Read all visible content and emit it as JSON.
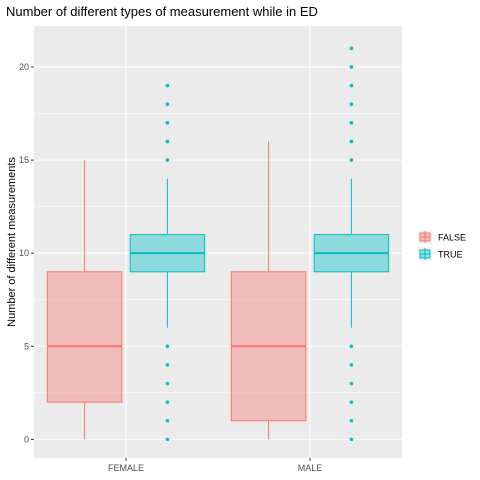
{
  "chart_data": {
    "type": "box",
    "title": "Number of different types of measurement while in ED",
    "xlabel": "",
    "ylabel": "Number of different measurements",
    "categories": [
      "FEMALE",
      "MALE"
    ],
    "ylim": [
      -1,
      22.2
    ],
    "yticks": [
      0,
      5,
      10,
      15,
      20
    ],
    "grid": true,
    "legend_position": "right",
    "series": [
      {
        "name": "FALSE",
        "color": "#F8766D",
        "boxes": [
          {
            "category": "FEMALE",
            "min": 0,
            "q1": 2,
            "median": 5,
            "q3": 9,
            "max": 15,
            "outliers": []
          },
          {
            "category": "MALE",
            "min": 0,
            "q1": 1,
            "median": 5,
            "q3": 9,
            "max": 16,
            "outliers": []
          }
        ]
      },
      {
        "name": "TRUE",
        "color": "#00BFC4",
        "boxes": [
          {
            "category": "FEMALE",
            "min": 6,
            "q1": 9,
            "median": 10,
            "q3": 11,
            "max": 14,
            "outliers": [
              0,
              1,
              2,
              3,
              4,
              5,
              15,
              16,
              17,
              18,
              19
            ]
          },
          {
            "category": "MALE",
            "min": 6,
            "q1": 9,
            "median": 10,
            "q3": 11,
            "max": 14,
            "outliers": [
              0,
              1,
              2,
              3,
              4,
              5,
              15,
              16,
              17,
              18,
              19,
              20,
              21
            ]
          }
        ]
      }
    ]
  }
}
